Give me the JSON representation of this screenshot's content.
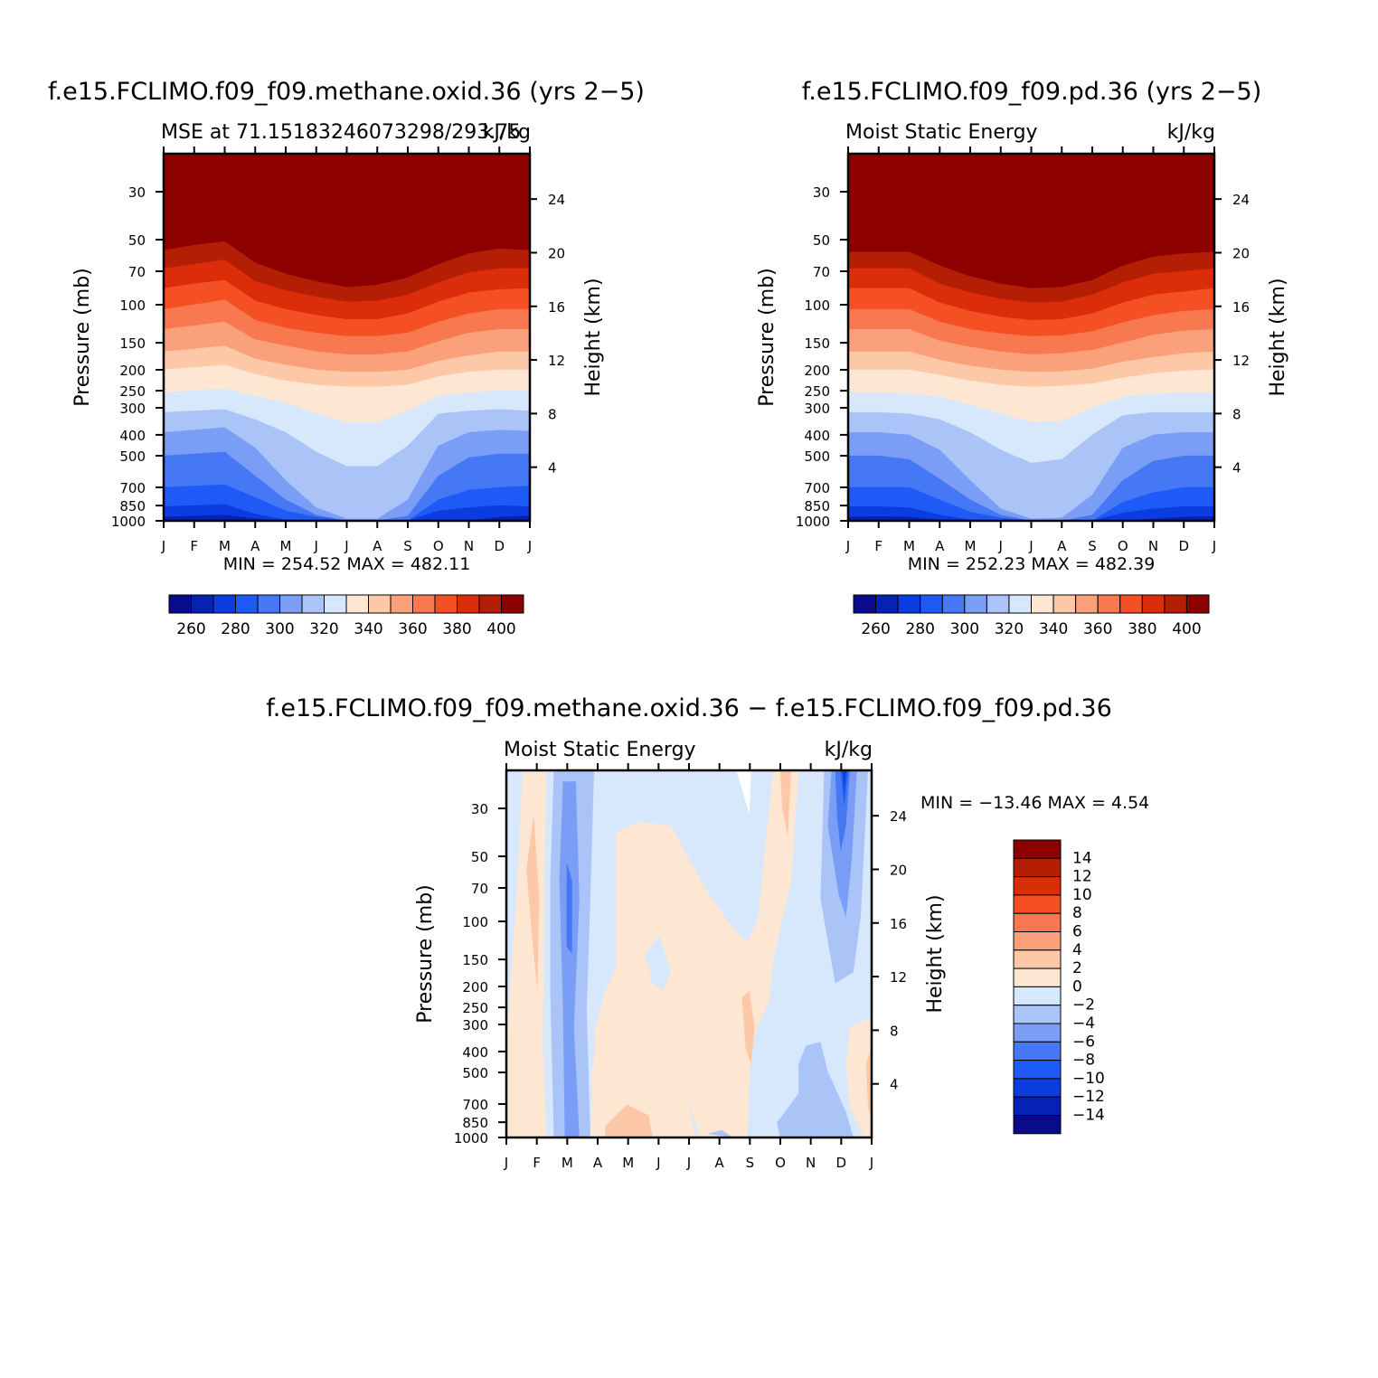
{
  "chart_data": [
    {
      "type": "contour",
      "title": "f.e15.FCLIMO.f09_f09.methane.oxid.36 (yrs 2−5)",
      "subtitle_left": "MSE at 71.15183246073298/293.75",
      "subtitle_right": "kJ/kg",
      "ylabel": "Pressure (mb)",
      "ylabel_right": "Height (km)",
      "x_ticks": [
        "J",
        "F",
        "M",
        "A",
        "M",
        "J",
        "J",
        "A",
        "S",
        "O",
        "N",
        "D",
        "J"
      ],
      "pressure_ticks": [
        30,
        50,
        70,
        100,
        150,
        200,
        250,
        300,
        400,
        500,
        700,
        850,
        1000
      ],
      "height_ticks": [
        24,
        20,
        16,
        12,
        8,
        4
      ],
      "stats": "MIN = 254.52 MAX = 482.11",
      "colorbar_ticks": [
        "260",
        "280",
        "300",
        "320",
        "340",
        "360",
        "380",
        "400"
      ],
      "levels": [
        250,
        260,
        270,
        280,
        290,
        300,
        310,
        320,
        330,
        340,
        350,
        360,
        370,
        380,
        390,
        400
      ],
      "contours": [
        {
          "level": 260,
          "p": [
            1000,
            1000,
            990,
            1000,
            1000,
            1000,
            1000,
            1000,
            1000,
            1000,
            1000,
            1000,
            1000
          ]
        },
        {
          "level": 270,
          "p": [
            960,
            950,
            940,
            980,
            1000,
            1000,
            1000,
            1000,
            1000,
            1000,
            1000,
            960,
            950
          ]
        },
        {
          "level": 280,
          "p": [
            860,
            850,
            840,
            930,
            990,
            1000,
            1000,
            1000,
            1000,
            900,
            870,
            850,
            860
          ]
        },
        {
          "level": 290,
          "p": [
            700,
            690,
            680,
            780,
            900,
            960,
            1000,
            1000,
            1000,
            800,
            720,
            700,
            690
          ]
        },
        {
          "level": 300,
          "p": [
            500,
            490,
            480,
            620,
            800,
            940,
            1000,
            1000,
            950,
            620,
            510,
            490,
            490
          ]
        },
        {
          "level": 310,
          "p": [
            390,
            380,
            370,
            460,
            650,
            870,
            980,
            980,
            800,
            450,
            390,
            380,
            385
          ]
        },
        {
          "level": 320,
          "p": [
            315,
            310,
            305,
            340,
            390,
            480,
            560,
            560,
            450,
            320,
            310,
            305,
            310
          ]
        },
        {
          "level": 330,
          "p": [
            255,
            250,
            245,
            265,
            285,
            320,
            350,
            350,
            310,
            265,
            255,
            250,
            250
          ]
        },
        {
          "level": 340,
          "p": [
            200,
            195,
            190,
            210,
            225,
            235,
            240,
            240,
            235,
            215,
            205,
            200,
            200
          ]
        },
        {
          "level": 350,
          "p": [
            165,
            160,
            155,
            178,
            190,
            200,
            205,
            205,
            200,
            182,
            172,
            165,
            165
          ]
        },
        {
          "level": 360,
          "p": [
            130,
            125,
            120,
            145,
            155,
            165,
            170,
            170,
            165,
            148,
            135,
            130,
            130
          ]
        },
        {
          "level": 370,
          "p": [
            105,
            100,
            95,
            118,
            128,
            135,
            140,
            140,
            135,
            120,
            110,
            105,
            105
          ]
        },
        {
          "level": 380,
          "p": [
            84,
            80,
            77,
            96,
            105,
            112,
            117,
            117,
            110,
            97,
            88,
            85,
            84
          ]
        },
        {
          "level": 390,
          "p": [
            68,
            65,
            62,
            78,
            86,
            92,
            97,
            96,
            90,
            79,
            71,
            68,
            68
          ]
        },
        {
          "level": 400,
          "p": [
            56,
            53,
            51,
            64,
            72,
            78,
            83,
            81,
            75,
            65,
            58,
            55,
            56
          ]
        }
      ]
    },
    {
      "type": "contour",
      "title": "f.e15.FCLIMO.f09_f09.pd.36 (yrs 2−5)",
      "subtitle_left": "Moist Static Energy",
      "subtitle_right": "kJ/kg",
      "ylabel": "Pressure (mb)",
      "ylabel_right": "Height (km)",
      "x_ticks": [
        "J",
        "F",
        "M",
        "A",
        "M",
        "J",
        "J",
        "A",
        "S",
        "O",
        "N",
        "D",
        "J"
      ],
      "pressure_ticks": [
        30,
        50,
        70,
        100,
        150,
        200,
        250,
        300,
        400,
        500,
        700,
        850,
        1000
      ],
      "height_ticks": [
        24,
        20,
        16,
        12,
        8,
        4
      ],
      "stats": "MIN = 252.23 MAX = 482.39",
      "colorbar_ticks": [
        "260",
        "280",
        "300",
        "320",
        "340",
        "360",
        "380",
        "400"
      ],
      "levels": [
        250,
        260,
        270,
        280,
        290,
        300,
        310,
        320,
        330,
        340,
        350,
        360,
        370,
        380,
        390,
        400
      ],
      "contours": [
        {
          "level": 260,
          "p": [
            1000,
            1000,
            1000,
            1000,
            1000,
            1000,
            1000,
            1000,
            1000,
            1000,
            1000,
            990,
            990
          ]
        },
        {
          "level": 270,
          "p": [
            960,
            955,
            960,
            990,
            1000,
            1000,
            1000,
            1000,
            1000,
            1000,
            980,
            960,
            955
          ]
        },
        {
          "level": 280,
          "p": [
            860,
            860,
            870,
            940,
            990,
            1000,
            1000,
            1000,
            1000,
            920,
            880,
            860,
            860
          ]
        },
        {
          "level": 290,
          "p": [
            700,
            700,
            700,
            800,
            910,
            970,
            1000,
            1000,
            1000,
            820,
            740,
            700,
            700
          ]
        },
        {
          "level": 300,
          "p": [
            500,
            500,
            520,
            640,
            800,
            940,
            1000,
            1000,
            940,
            650,
            530,
            500,
            500
          ]
        },
        {
          "level": 310,
          "p": [
            390,
            390,
            400,
            470,
            650,
            880,
            980,
            970,
            760,
            460,
            400,
            390,
            390
          ]
        },
        {
          "level": 320,
          "p": [
            315,
            315,
            320,
            340,
            390,
            470,
            540,
            520,
            400,
            325,
            315,
            315,
            315
          ]
        },
        {
          "level": 330,
          "p": [
            255,
            255,
            258,
            268,
            290,
            320,
            350,
            345,
            300,
            268,
            258,
            255,
            255
          ]
        },
        {
          "level": 340,
          "p": [
            200,
            200,
            200,
            212,
            225,
            235,
            240,
            238,
            232,
            218,
            208,
            202,
            200
          ]
        },
        {
          "level": 350,
          "p": [
            165,
            165,
            165,
            180,
            192,
            200,
            205,
            204,
            198,
            184,
            175,
            168,
            165
          ]
        },
        {
          "level": 360,
          "p": [
            130,
            130,
            130,
            147,
            157,
            165,
            170,
            168,
            162,
            150,
            138,
            132,
            130
          ]
        },
        {
          "level": 370,
          "p": [
            105,
            105,
            105,
            120,
            130,
            136,
            140,
            139,
            133,
            121,
            112,
            107,
            105
          ]
        },
        {
          "level": 380,
          "p": [
            84,
            84,
            84,
            98,
            107,
            114,
            118,
            117,
            110,
            98,
            90,
            87,
            84
          ]
        },
        {
          "level": 390,
          "p": [
            68,
            68,
            68,
            80,
            88,
            94,
            98,
            97,
            90,
            79,
            72,
            70,
            68
          ]
        },
        {
          "level": 400,
          "p": [
            57,
            57,
            57,
            66,
            74,
            80,
            84,
            83,
            77,
            66,
            60,
            58,
            57
          ]
        }
      ]
    },
    {
      "type": "contour",
      "title": "f.e15.FCLIMO.f09_f09.methane.oxid.36 − f.e15.FCLIMO.f09_f09.pd.36",
      "subtitle_left": "Moist Static Energy",
      "subtitle_right": "kJ/kg",
      "ylabel": "Pressure (mb)",
      "ylabel_right": "Height (km)",
      "x_ticks": [
        "J",
        "F",
        "M",
        "A",
        "M",
        "J",
        "J",
        "A",
        "S",
        "O",
        "N",
        "D",
        "J"
      ],
      "pressure_ticks": [
        30,
        50,
        70,
        100,
        150,
        200,
        250,
        300,
        400,
        500,
        700,
        850,
        1000
      ],
      "height_ticks": [
        24,
        20,
        16,
        12,
        8,
        4
      ],
      "stats": "MIN = −13.46 MAX =    4.54",
      "colorbar_ticks": [
        "14",
        "12",
        "10",
        "8",
        "6",
        "4",
        "2",
        "0",
        "−2",
        "−4",
        "−6",
        "−8",
        "−10",
        "−12",
        "−14"
      ],
      "regions": [
        {
          "value": -4,
          "note": "deep negative column near M (Mar), strongest near 100 mb"
        },
        {
          "value": -12,
          "note": "upper-level minimum near D (Dec), above 50 mb"
        },
        {
          "value": 2,
          "note": "positive anomalies F, Apr–Jun, Sep–Oct, late Dec near surface"
        }
      ]
    }
  ],
  "colors": {
    "ramp": [
      "#0a0a8c",
      "#0522b4",
      "#0a3ce0",
      "#1e5af5",
      "#4678f5",
      "#7a9ef5",
      "#aac4f8",
      "#d8e8fc",
      "#fde6d2",
      "#fcc8a8",
      "#faa07a",
      "#f87850",
      "#f55023",
      "#dc2d0a",
      "#b41e05",
      "#8c0000"
    ]
  }
}
